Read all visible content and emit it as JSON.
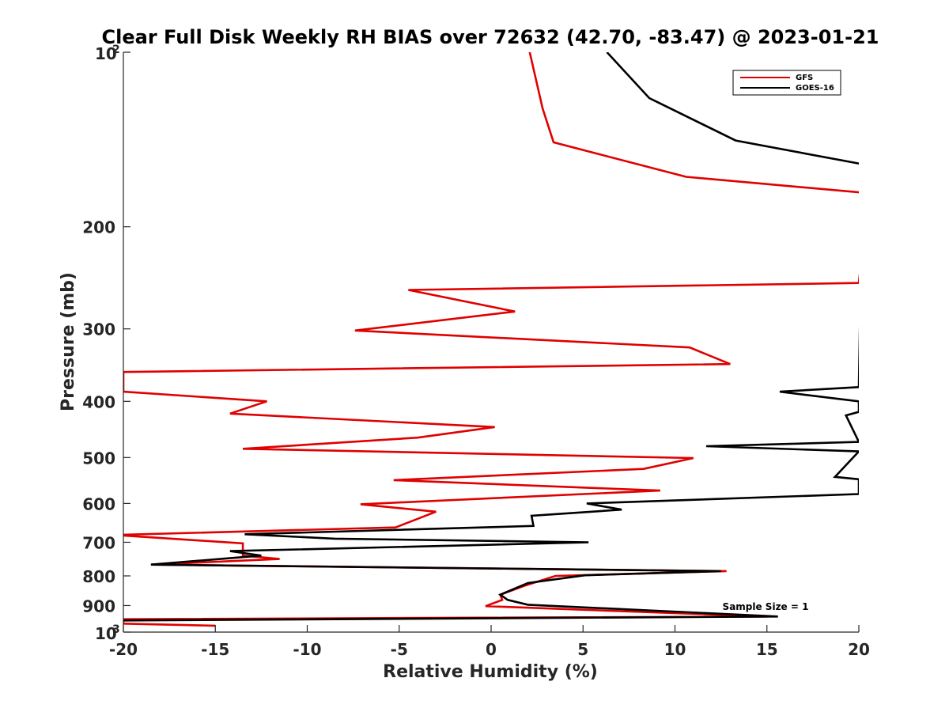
{
  "chart_data": {
    "type": "line",
    "title": "Clear Full Disk Weekly RH BIAS over 72632 (42.70, -83.47) @ 2023-01-21",
    "xlabel": "Relative Humidity (%)",
    "ylabel": "Pressure (mb)",
    "xlim": [
      -20,
      20
    ],
    "ylim": [
      100,
      1000
    ],
    "yscale": "log",
    "y_reversed": true,
    "grid": false,
    "legend_position": "top-right",
    "note": "Sample Size = 1",
    "x_ticks": [
      "-20",
      "-15",
      "-10",
      "-5",
      "0",
      "5",
      "10",
      "15",
      "20"
    ],
    "y_ticks": [
      {
        "value": 100,
        "base": "10",
        "exp": "2"
      },
      {
        "value": 200,
        "label": "200"
      },
      {
        "value": 300,
        "label": "300"
      },
      {
        "value": 400,
        "label": "400"
      },
      {
        "value": 500,
        "label": "500"
      },
      {
        "value": 600,
        "label": "600"
      },
      {
        "value": 700,
        "label": "700"
      },
      {
        "value": 800,
        "label": "800"
      },
      {
        "value": 900,
        "label": "900"
      },
      {
        "value": 1000,
        "base": "10",
        "exp": "3"
      }
    ],
    "series": [
      {
        "name": "GFS",
        "color": "#e00000",
        "points": [
          [
            2.1,
            100
          ],
          [
            2.8,
            125
          ],
          [
            3.4,
            143
          ],
          [
            10.6,
            164
          ],
          [
            20.5,
            175
          ],
          [
            20,
            250
          ],
          [
            -4.5,
            257
          ],
          [
            1.3,
            280
          ],
          [
            -7.4,
            302
          ],
          [
            10.8,
            323
          ],
          [
            13,
            345
          ],
          [
            -20,
            356
          ],
          [
            -20,
            385
          ],
          [
            -12.2,
            400
          ],
          [
            -14.2,
            420
          ],
          [
            0.2,
            443
          ],
          [
            -4,
            462
          ],
          [
            -13.5,
            483
          ],
          [
            11,
            501
          ],
          [
            8.3,
            523
          ],
          [
            -5.3,
            547
          ],
          [
            9.2,
            570
          ],
          [
            -7.1,
            602
          ],
          [
            -3,
            620
          ],
          [
            -5.2,
            660
          ],
          [
            -20.5,
            680
          ],
          [
            -13.5,
            703
          ],
          [
            -13.5,
            738
          ],
          [
            -11.5,
            748
          ],
          [
            -18.5,
            765
          ],
          [
            12.8,
            785
          ],
          [
            3.5,
            800
          ],
          [
            1.8,
            832
          ],
          [
            0.5,
            862
          ],
          [
            0.6,
            880
          ],
          [
            -0.3,
            902
          ],
          [
            15,
            940
          ],
          [
            -20,
            950
          ],
          [
            -20,
            967
          ],
          [
            -15,
            975
          ]
        ]
      },
      {
        "name": "GOES-16",
        "color": "#000000",
        "points": [
          [
            6.3,
            100
          ],
          [
            8.6,
            120
          ],
          [
            13.3,
            142
          ],
          [
            20.2,
            156
          ],
          [
            20,
            378
          ],
          [
            15.7,
            385
          ],
          [
            20,
            400
          ],
          [
            20,
            417
          ],
          [
            19.3,
            423
          ],
          [
            20,
            470
          ],
          [
            11.7,
            478
          ],
          [
            20,
            488
          ],
          [
            18.7,
            540
          ],
          [
            20,
            545
          ],
          [
            20,
            578
          ],
          [
            5.2,
            600
          ],
          [
            7.1,
            615
          ],
          [
            2.2,
            630
          ],
          [
            2.3,
            656
          ],
          [
            -13.4,
            678
          ],
          [
            -8.5,
            690
          ],
          [
            5.3,
            700
          ],
          [
            -14.2,
            725
          ],
          [
            -12.5,
            738
          ],
          [
            -18.5,
            765
          ],
          [
            12.5,
            785
          ],
          [
            5.1,
            798
          ],
          [
            2,
            823
          ],
          [
            0.5,
            862
          ],
          [
            0.9,
            880
          ],
          [
            2,
            897
          ],
          [
            15.6,
            940
          ],
          [
            -20,
            955
          ]
        ]
      }
    ]
  }
}
